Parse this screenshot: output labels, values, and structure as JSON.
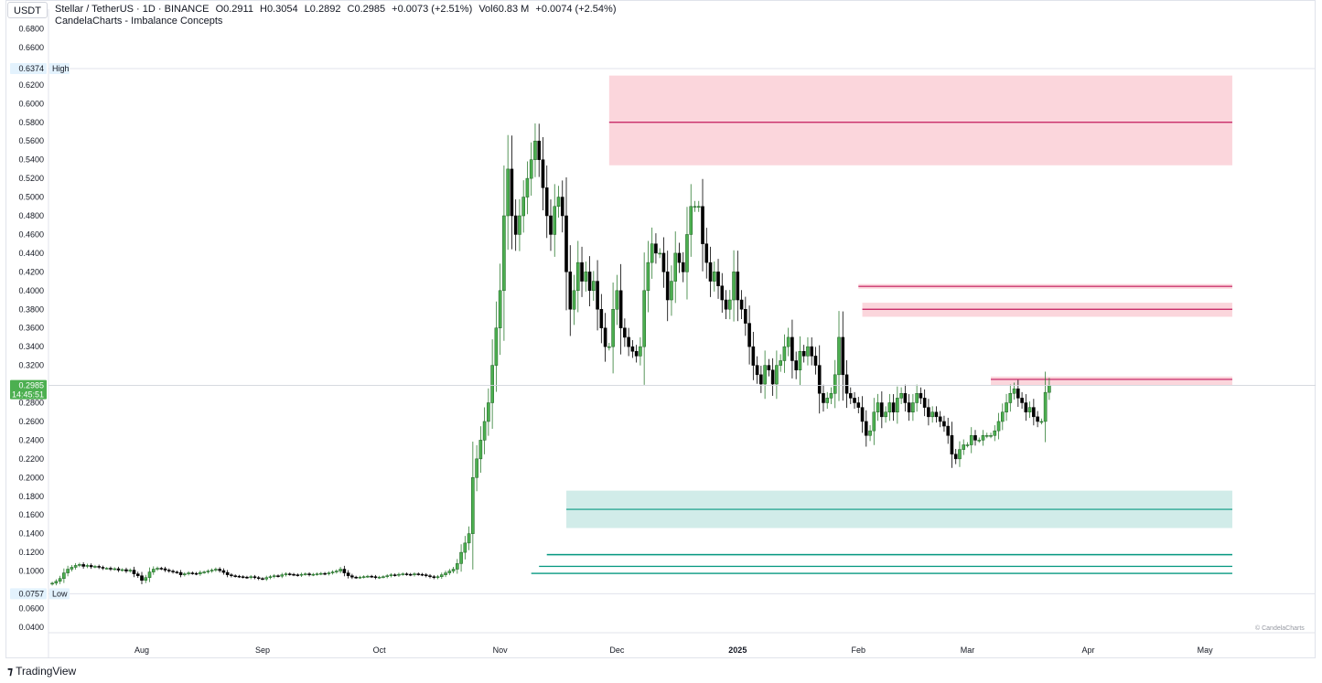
{
  "currency_button": "USDT",
  "legend": {
    "symbol": "Stellar / TetherUS · 1D · BINANCE",
    "open": "O0.2911",
    "high": "H0.3054",
    "low": "L0.2892",
    "close": "C0.2985",
    "change": "+0.0073 (+2.51%)",
    "volume": "Vol60.83 M",
    "volume_change": "+0.0074 (+2.54%)",
    "indicator": "CandelaCharts - Imbalance Concepts"
  },
  "watermark": "© CandelaCharts",
  "footer_brand": "TradingView",
  "colors": {
    "up": "#4caf50",
    "down": "#000000",
    "bearish_zone": "#f8bbc4",
    "bearish_line": "#c2185b",
    "bullish_zone": "#b2dfdb",
    "bullish_line": "#089981",
    "last_price_bg": "#4caf50"
  },
  "chart_data": {
    "type": "candlestick",
    "y_axis_labels": [
      "0.6800",
      "0.6600",
      "0.6200",
      "0.6000",
      "0.5800",
      "0.5600",
      "0.5400",
      "0.5200",
      "0.5000",
      "0.4800",
      "0.4600",
      "0.4400",
      "0.4200",
      "0.4000",
      "0.3800",
      "0.3600",
      "0.3400",
      "0.3200",
      "0.2800",
      "0.2600",
      "0.2400",
      "0.2200",
      "0.2000",
      "0.1800",
      "0.1600",
      "0.1400",
      "0.1200",
      "0.1000",
      "0.0600",
      "0.0400"
    ],
    "x_axis_labels": [
      "Aug",
      "Sep",
      "Oct",
      "Nov",
      "Dec",
      "2025",
      "Feb",
      "Mar",
      "Apr",
      "May"
    ],
    "x_axis_day_index": [
      0,
      31,
      61,
      92,
      122,
      153,
      184,
      212,
      243,
      273
    ],
    "high_label": {
      "value": "0.6374",
      "text": "High"
    },
    "low_label": {
      "value": "0.0757",
      "text": "Low"
    },
    "last_price": {
      "value": "0.2985",
      "countdown": "14:45:51"
    },
    "first_day_offset": -23,
    "closes": [
      0.087,
      0.089,
      0.092,
      0.098,
      0.102,
      0.104,
      0.106,
      0.107,
      0.105,
      0.106,
      0.1045,
      0.105,
      0.104,
      0.103,
      0.103,
      0.102,
      0.1025,
      0.101,
      0.1015,
      0.1,
      0.101,
      0.097,
      0.095,
      0.09,
      0.093,
      0.099,
      0.102,
      0.103,
      0.1025,
      0.101,
      0.1,
      0.099,
      0.0985,
      0.096,
      0.097,
      0.098,
      0.0975,
      0.097,
      0.0985,
      0.099,
      0.1,
      0.101,
      0.102,
      0.1005,
      0.0985,
      0.096,
      0.095,
      0.0945,
      0.094,
      0.0935,
      0.093,
      0.094,
      0.093,
      0.092,
      0.0915,
      0.093,
      0.094,
      0.095,
      0.0945,
      0.096,
      0.097,
      0.0965,
      0.096,
      0.0955,
      0.0965,
      0.097,
      0.096,
      0.0965,
      0.097,
      0.0975,
      0.097,
      0.098,
      0.099,
      0.1,
      0.102,
      0.098,
      0.095,
      0.0935,
      0.093,
      0.0935,
      0.094,
      0.0945,
      0.094,
      0.093,
      0.0935,
      0.094,
      0.095,
      0.096,
      0.0955,
      0.0965,
      0.097,
      0.0965,
      0.096,
      0.097,
      0.0965,
      0.096,
      0.095,
      0.094,
      0.093,
      0.094,
      0.096,
      0.098,
      0.1,
      0.102,
      0.108,
      0.12,
      0.13,
      0.14,
      0.2,
      0.22,
      0.24,
      0.26,
      0.28,
      0.32,
      0.36,
      0.4,
      0.48,
      0.53,
      0.48,
      0.46,
      0.48,
      0.5,
      0.52,
      0.54,
      0.56,
      0.54,
      0.51,
      0.48,
      0.46,
      0.49,
      0.5,
      0.48,
      0.42,
      0.38,
      0.4,
      0.43,
      0.41,
      0.42,
      0.4,
      0.41,
      0.38,
      0.36,
      0.34,
      0.34,
      0.38,
      0.4,
      0.36,
      0.35,
      0.34,
      0.335,
      0.33,
      0.34,
      0.4,
      0.43,
      0.45,
      0.44,
      0.44,
      0.42,
      0.39,
      0.41,
      0.44,
      0.43,
      0.42,
      0.46,
      0.49,
      0.49,
      0.49,
      0.45,
      0.43,
      0.41,
      0.42,
      0.405,
      0.39,
      0.38,
      0.39,
      0.42,
      0.39,
      0.38,
      0.365,
      0.34,
      0.32,
      0.31,
      0.3,
      0.32,
      0.315,
      0.3,
      0.32,
      0.325,
      0.34,
      0.35,
      0.325,
      0.315,
      0.335,
      0.33,
      0.34,
      0.33,
      0.32,
      0.29,
      0.28,
      0.285,
      0.29,
      0.31,
      0.35,
      0.31,
      0.29,
      0.285,
      0.28,
      0.275,
      0.26,
      0.245,
      0.25,
      0.27,
      0.28,
      0.265,
      0.27,
      0.28,
      0.27,
      0.285,
      0.29,
      0.28,
      0.27,
      0.28,
      0.29,
      0.285,
      0.275,
      0.265,
      0.27,
      0.265,
      0.26,
      0.255,
      0.245,
      0.225,
      0.22,
      0.23,
      0.235,
      0.235,
      0.245,
      0.24,
      0.24,
      0.245,
      0.245,
      0.245,
      0.25,
      0.26,
      0.27,
      0.28,
      0.29,
      0.295,
      0.285,
      0.28,
      0.27,
      0.275,
      0.265,
      0.26,
      0.26,
      0.2911,
      0.2985
    ],
    "zones": [
      {
        "kind": "bearish",
        "top": 0.63,
        "bottom": 0.534,
        "mid": 0.58,
        "start_day": 120,
        "end_day": 280
      },
      {
        "kind": "bearish",
        "top": 0.407,
        "bottom": 0.402,
        "mid": 0.4045,
        "start_day": 184,
        "end_day": 280
      },
      {
        "kind": "bearish",
        "top": 0.387,
        "bottom": 0.372,
        "mid": 0.38,
        "start_day": 185,
        "end_day": 280
      },
      {
        "kind": "bearish",
        "top": 0.308,
        "bottom": 0.299,
        "mid": 0.305,
        "start_day": 218,
        "end_day": 280
      },
      {
        "kind": "bullish",
        "top": 0.186,
        "bottom": 0.146,
        "mid": 0.166,
        "start_day": 109,
        "end_day": 280
      },
      {
        "kind": "bullish",
        "top": 0.119,
        "bottom": 0.116,
        "mid": 0.1175,
        "start_day": 104,
        "end_day": 280
      },
      {
        "kind": "bullish",
        "top": 0.106,
        "bottom": 0.104,
        "mid": 0.105,
        "start_day": 102,
        "end_day": 280
      },
      {
        "kind": "bullish",
        "top": 0.0985,
        "bottom": 0.097,
        "mid": 0.0975,
        "start_day": 100,
        "end_day": 280
      }
    ]
  }
}
